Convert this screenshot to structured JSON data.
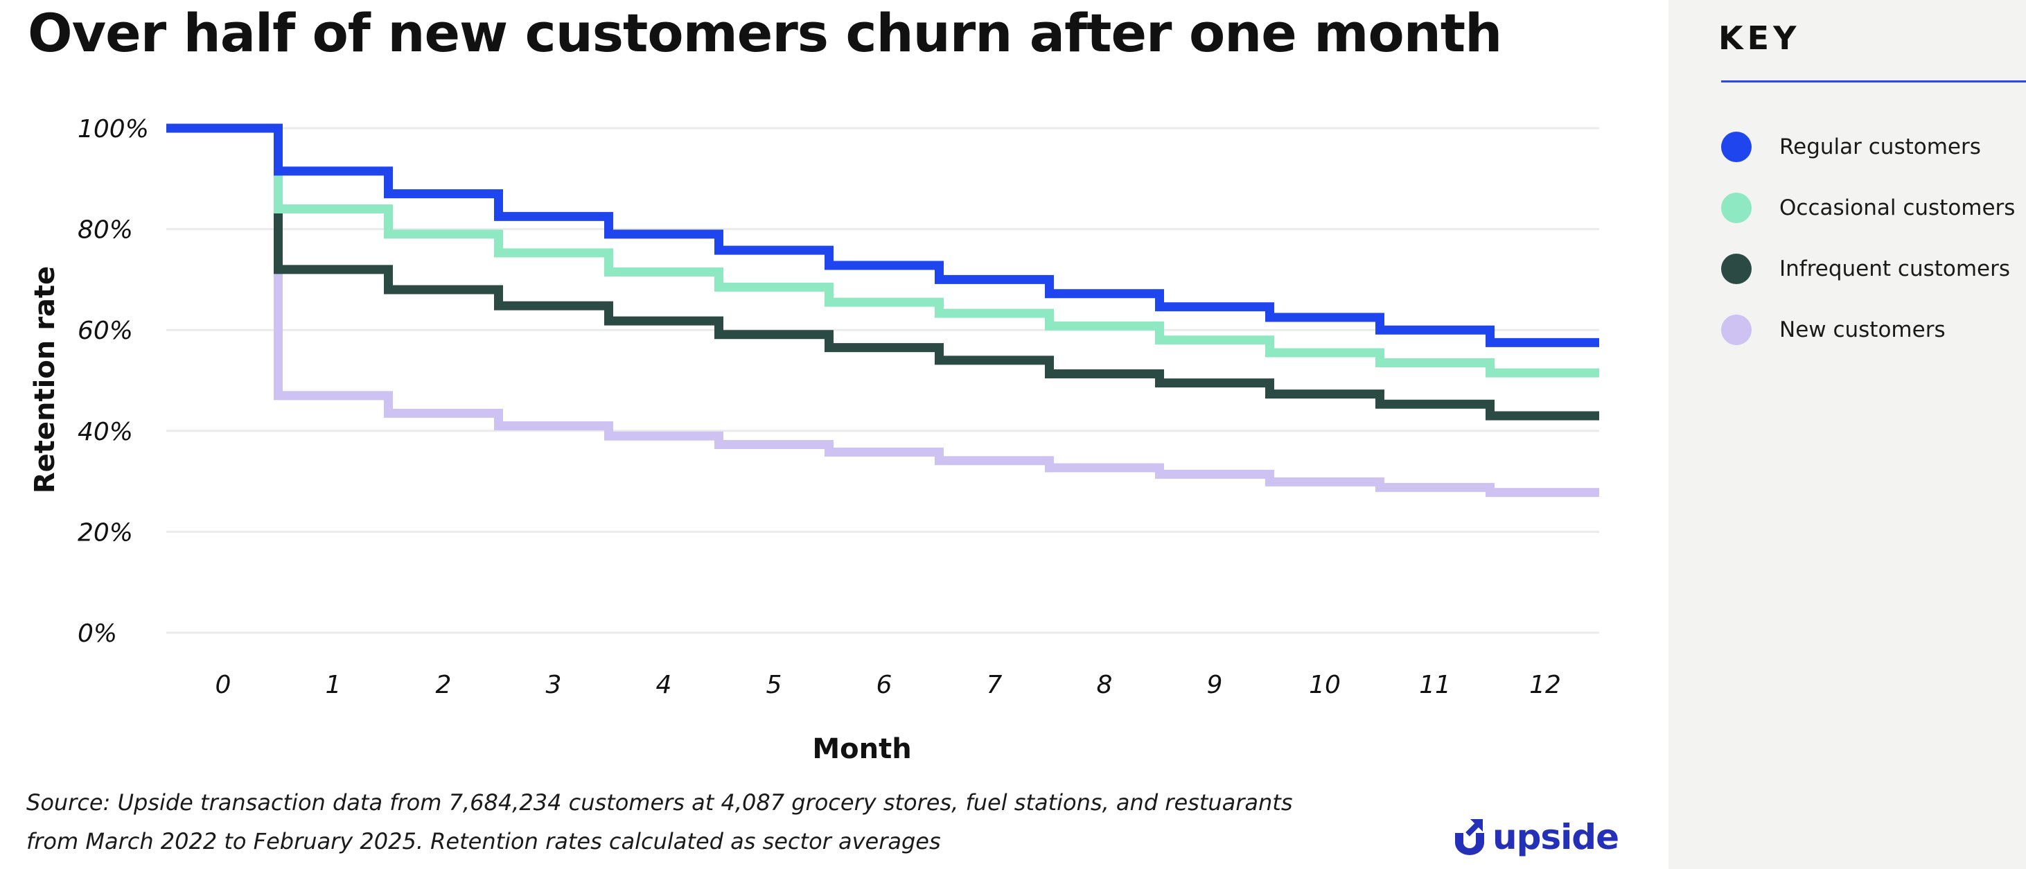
{
  "title": "Over half of new customers churn after one month",
  "source_line1": "Source: Upside transaction data from 7,684,234 customers at 4,087 grocery stores, fuel stations, and restuarants",
  "source_line2": "from March 2022 to February 2025. Retention rates calculated as sector averages",
  "logo_text": "upside",
  "key": {
    "title": "KEY",
    "items": [
      {
        "label": "Regular customers",
        "color": "#1f45ef"
      },
      {
        "label": "Occasional customers",
        "color": "#8ee9c2"
      },
      {
        "label": "Infrequent customers",
        "color": "#2b4a43"
      },
      {
        "label": "New customers",
        "color": "#cdc2f1"
      }
    ]
  },
  "colors": {
    "accent": "#2a4be0",
    "logo": "#2530b8",
    "grid": "#ebebeb",
    "sidebar": "#f3f3f2"
  },
  "chart_data": {
    "type": "line",
    "step": true,
    "xlabel": "Month",
    "ylabel": "Retention rate",
    "x": [
      0,
      1,
      2,
      3,
      4,
      5,
      6,
      7,
      8,
      9,
      10,
      11,
      12
    ],
    "xlim": [
      0,
      12
    ],
    "ylim": [
      0,
      100
    ],
    "yticks": [
      0,
      20,
      40,
      60,
      80,
      100
    ],
    "ytick_labels": [
      "0%",
      "20%",
      "40%",
      "60%",
      "80%",
      "100%"
    ],
    "grid": true,
    "legend": "right sidebar",
    "series": [
      {
        "name": "Regular customers",
        "color": "#1f45ef",
        "values": [
          100,
          91.5,
          87,
          82.5,
          79,
          75.8,
          72.8,
          70,
          67.2,
          64.6,
          62.5,
          60,
          57.5
        ]
      },
      {
        "name": "Occasional customers",
        "color": "#8ee9c2",
        "values": [
          100,
          84,
          79,
          75.3,
          71.5,
          68.5,
          65.5,
          63.3,
          60.8,
          58,
          55.5,
          53.5,
          51.5
        ]
      },
      {
        "name": "Infrequent customers",
        "color": "#2b4a43",
        "values": [
          100,
          72,
          68,
          64.8,
          61.8,
          59.1,
          56.5,
          54,
          51.3,
          49.5,
          47.3,
          45.3,
          43
        ]
      },
      {
        "name": "New customers",
        "color": "#cdc2f1",
        "values": [
          100,
          47,
          43.5,
          41,
          39,
          37.3,
          35.8,
          34.1,
          32.7,
          31.4,
          29.9,
          28.8,
          27.8
        ]
      }
    ]
  }
}
